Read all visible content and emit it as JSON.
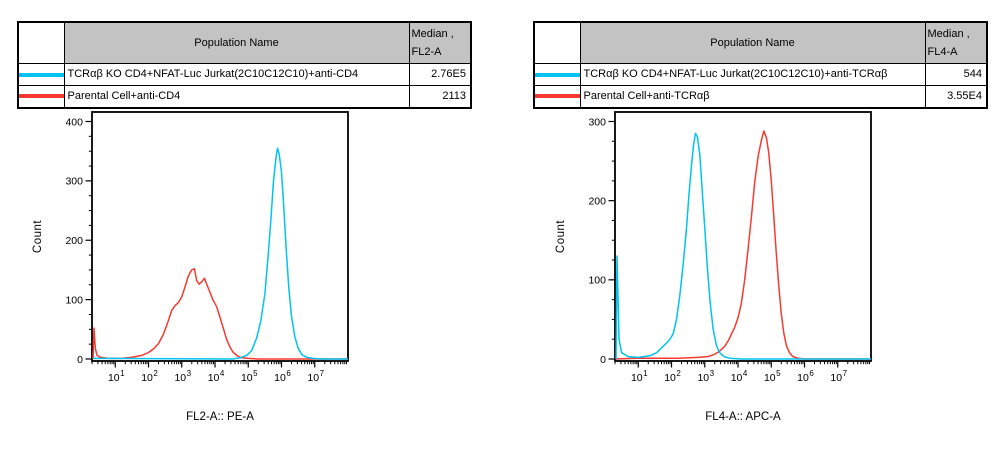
{
  "colors": {
    "series_cyan": "#00c3f0",
    "series_red": "#f73a31",
    "header_bg": "#c3c3c3",
    "axis": "#000000"
  },
  "panels": [
    {
      "table": {
        "population_header": "Population Name",
        "median_header_line1": "Median ,",
        "median_header_line2": "FL2-A",
        "rows": [
          {
            "color": "series_cyan",
            "name": "TCRαβ KO CD4+NFAT-Luc Jurkat(2C10C12C10)+anti-CD4",
            "median": "2.76E5"
          },
          {
            "color": "series_red",
            "name": "Parental Cell+anti-CD4",
            "median": "2113"
          }
        ]
      }
    },
    {
      "table": {
        "population_header": "Population Name",
        "median_header_line1": "Median ,",
        "median_header_line2": "FL4-A",
        "rows": [
          {
            "color": "series_cyan",
            "name": "TCRαβ KO CD4+NFAT-Luc Jurkat(2C10C12C10)+anti-TCRαβ",
            "median": "544"
          },
          {
            "color": "series_red",
            "name": "Parental Cell+anti-TCRαβ",
            "median": "3.55E4"
          }
        ]
      }
    }
  ],
  "chart_data": [
    {
      "type": "line",
      "subtype": "flow-cytometry-histogram-overlay",
      "title": "",
      "xlabel": "FL2-A:: PE-A",
      "ylabel": "Count",
      "x_scale": "log10",
      "x_range_decades": [
        0.3,
        8.0
      ],
      "x_tick_decades": [
        1,
        2,
        3,
        4,
        5,
        6,
        7
      ],
      "ylim": [
        0,
        416
      ],
      "y_ticks": [
        0,
        100,
        200,
        300,
        400
      ],
      "y_minor_step": 25,
      "grid": false,
      "legend_position": "table-above",
      "series": [
        {
          "name": "Parental Cell+anti-CD4",
          "color": "series_red",
          "median": "2113",
          "points": [
            [
              0.33,
              0
            ],
            [
              0.36,
              52
            ],
            [
              0.4,
              18
            ],
            [
              0.45,
              6
            ],
            [
              0.55,
              3
            ],
            [
              0.8,
              1
            ],
            [
              1.2,
              1
            ],
            [
              1.5,
              3
            ],
            [
              1.8,
              6
            ],
            [
              2.0,
              11
            ],
            [
              2.15,
              17
            ],
            [
              2.3,
              26
            ],
            [
              2.45,
              42
            ],
            [
              2.58,
              62
            ],
            [
              2.7,
              82
            ],
            [
              2.8,
              90
            ],
            [
              2.9,
              95
            ],
            [
              3.0,
              105
            ],
            [
              3.1,
              122
            ],
            [
              3.2,
              140
            ],
            [
              3.3,
              150
            ],
            [
              3.38,
              152
            ],
            [
              3.45,
              132
            ],
            [
              3.52,
              126
            ],
            [
              3.6,
              130
            ],
            [
              3.68,
              136
            ],
            [
              3.75,
              126
            ],
            [
              3.85,
              112
            ],
            [
              3.95,
              98
            ],
            [
              4.05,
              88
            ],
            [
              4.15,
              70
            ],
            [
              4.25,
              52
            ],
            [
              4.35,
              33
            ],
            [
              4.45,
              20
            ],
            [
              4.55,
              11
            ],
            [
              4.68,
              5
            ],
            [
              4.8,
              2
            ],
            [
              5.0,
              1
            ],
            [
              5.3,
              0
            ],
            [
              8.0,
              0
            ]
          ]
        },
        {
          "name": "TCRαβ KO CD4+NFAT-Luc Jurkat(2C10C12C10)+anti-CD4",
          "color": "series_cyan",
          "median": "2.76E5",
          "points": [
            [
              0.33,
              1
            ],
            [
              4.55,
              0
            ],
            [
              4.75,
              2
            ],
            [
              4.95,
              6
            ],
            [
              5.1,
              14
            ],
            [
              5.25,
              35
            ],
            [
              5.38,
              65
            ],
            [
              5.5,
              110
            ],
            [
              5.6,
              175
            ],
            [
              5.68,
              235
            ],
            [
              5.76,
              300
            ],
            [
              5.83,
              338
            ],
            [
              5.88,
              355
            ],
            [
              5.93,
              345
            ],
            [
              6.0,
              315
            ],
            [
              6.07,
              255
            ],
            [
              6.14,
              185
            ],
            [
              6.22,
              120
            ],
            [
              6.3,
              72
            ],
            [
              6.4,
              38
            ],
            [
              6.5,
              18
            ],
            [
              6.62,
              7
            ],
            [
              6.75,
              3
            ],
            [
              6.95,
              1
            ],
            [
              7.2,
              0
            ],
            [
              8.0,
              0
            ]
          ]
        }
      ]
    },
    {
      "type": "line",
      "subtype": "flow-cytometry-histogram-overlay",
      "title": "",
      "xlabel": "FL4-A:: APC-A",
      "ylabel": "Count",
      "x_scale": "log10",
      "x_range_decades": [
        0.3,
        8.0
      ],
      "x_tick_decades": [
        1,
        2,
        3,
        4,
        5,
        6,
        7
      ],
      "ylim": [
        0,
        312
      ],
      "y_ticks": [
        0,
        100,
        200,
        300
      ],
      "y_minor_step": 25,
      "grid": false,
      "legend_position": "table-above",
      "series": [
        {
          "name": "Parental Cell+anti-TCRαβ",
          "color": "series_red",
          "median": "3.55E4",
          "points": [
            [
              0.33,
              0
            ],
            [
              1.0,
              1
            ],
            [
              2.2,
              1
            ],
            [
              2.8,
              2
            ],
            [
              3.1,
              3
            ],
            [
              3.3,
              6
            ],
            [
              3.45,
              10
            ],
            [
              3.6,
              16
            ],
            [
              3.72,
              24
            ],
            [
              3.82,
              33
            ],
            [
              3.9,
              40
            ],
            [
              4.0,
              52
            ],
            [
              4.1,
              70
            ],
            [
              4.2,
              100
            ],
            [
              4.3,
              138
            ],
            [
              4.4,
              178
            ],
            [
              4.5,
              222
            ],
            [
              4.6,
              255
            ],
            [
              4.7,
              276
            ],
            [
              4.78,
              288
            ],
            [
              4.85,
              280
            ],
            [
              4.92,
              262
            ],
            [
              5.0,
              225
            ],
            [
              5.08,
              178
            ],
            [
              5.15,
              135
            ],
            [
              5.22,
              95
            ],
            [
              5.3,
              58
            ],
            [
              5.38,
              32
            ],
            [
              5.46,
              16
            ],
            [
              5.55,
              8
            ],
            [
              5.65,
              3
            ],
            [
              5.8,
              1
            ],
            [
              6.0,
              0
            ],
            [
              8.0,
              0
            ]
          ]
        },
        {
          "name": "TCRαβ KO CD4+NFAT-Luc Jurkat(2C10C12C10)+anti-TCRαβ",
          "color": "series_cyan",
          "median": "544",
          "points": [
            [
              0.33,
              0
            ],
            [
              0.36,
              130
            ],
            [
              0.42,
              25
            ],
            [
              0.5,
              8
            ],
            [
              0.7,
              3
            ],
            [
              1.0,
              2
            ],
            [
              1.35,
              4
            ],
            [
              1.55,
              8
            ],
            [
              1.7,
              14
            ],
            [
              1.85,
              20
            ],
            [
              1.95,
              25
            ],
            [
              2.05,
              32
            ],
            [
              2.15,
              50
            ],
            [
              2.25,
              80
            ],
            [
              2.35,
              120
            ],
            [
              2.45,
              165
            ],
            [
              2.52,
              205
            ],
            [
              2.6,
              245
            ],
            [
              2.66,
              270
            ],
            [
              2.72,
              285
            ],
            [
              2.78,
              280
            ],
            [
              2.85,
              258
            ],
            [
              2.92,
              215
            ],
            [
              3.0,
              165
            ],
            [
              3.08,
              115
            ],
            [
              3.16,
              72
            ],
            [
              3.25,
              38
            ],
            [
              3.35,
              17
            ],
            [
              3.45,
              8
            ],
            [
              3.58,
              3
            ],
            [
              3.75,
              1
            ],
            [
              4.1,
              0
            ],
            [
              8.0,
              0
            ]
          ]
        }
      ]
    }
  ]
}
